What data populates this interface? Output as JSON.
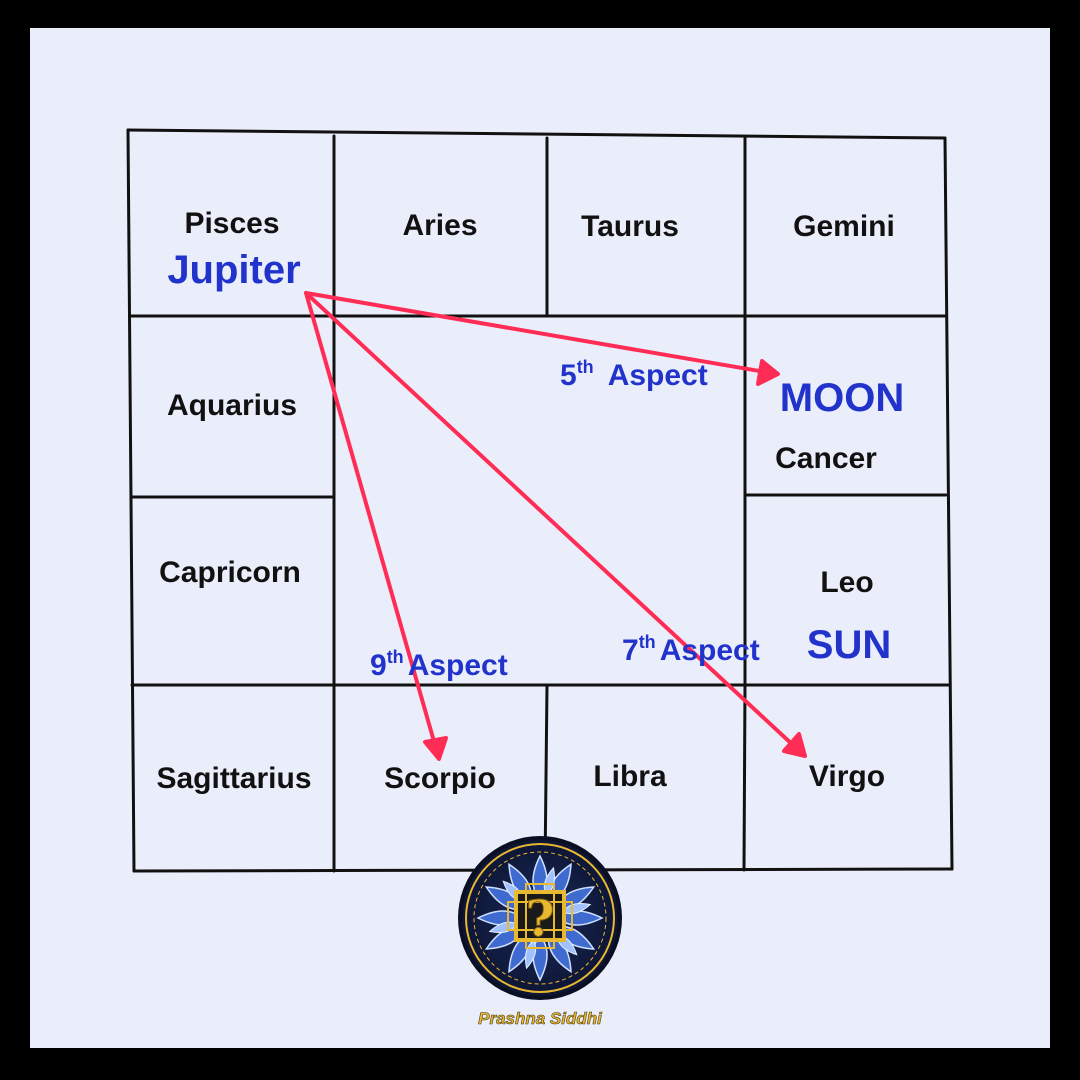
{
  "signs": {
    "pisces": "Pisces",
    "aries": "Aries",
    "taurus": "Taurus",
    "gemini": "Gemini",
    "aquarius": "Aquarius",
    "cancer": "Cancer",
    "capricorn": "Capricorn",
    "leo": "Leo",
    "sagittarius": "Sagittarius",
    "scorpio": "Scorpio",
    "libra": "Libra",
    "virgo": "Virgo"
  },
  "planets": {
    "jupiter": "Jupiter",
    "moon": "MOON",
    "sun": "SUN"
  },
  "aspects": {
    "fifth": {
      "num": "5",
      "sup": "th",
      "word": "Aspect"
    },
    "seventh": {
      "num": "7",
      "sup": "th",
      "word": "Aspect"
    },
    "ninth": {
      "num": "9",
      "sup": "th",
      "word": "Aspect"
    }
  },
  "logo": {
    "brand_text": "Prashna Siddhi",
    "symbol": "?"
  },
  "colors": {
    "background": "#eaeefb",
    "frame": "#000000",
    "grid_lines": "#111111",
    "planet_text": "#2233cc",
    "arrow": "#ff2d55",
    "logo_gold": "#e8b830",
    "logo_blue": "#2a4fa8"
  }
}
